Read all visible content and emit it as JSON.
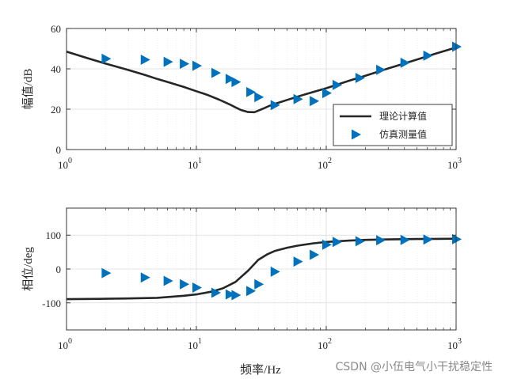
{
  "chart_data": [
    {
      "type": "line",
      "xscale": "log",
      "xlim": [
        1,
        1000
      ],
      "ylim": [
        0,
        60
      ],
      "yticks": [
        0,
        20,
        40,
        60
      ],
      "ylabel": "幅值/dB",
      "xlabel": "",
      "grid": true,
      "legend_position": "lower-right",
      "series": [
        {
          "name": "理论计算值",
          "kind": "line",
          "color": "#262626",
          "x": [
            1,
            1.5,
            2,
            3,
            4,
            5,
            6,
            8,
            10,
            12,
            15,
            18,
            20,
            22,
            25,
            28,
            30,
            33,
            36,
            40,
            45,
            50,
            60,
            70,
            80,
            100,
            150,
            200,
            300,
            500,
            700,
            1000
          ],
          "y": [
            48.5,
            45,
            42.6,
            39.4,
            37,
            35,
            33.5,
            31,
            28.9,
            27.2,
            24.7,
            22.4,
            20.9,
            19.6,
            18.6,
            18.5,
            19.3,
            20.4,
            21.5,
            22.6,
            23.6,
            24.6,
            26.2,
            27.5,
            28.6,
            30.4,
            34.1,
            36.6,
            40.2,
            44.6,
            47.6,
            50.6
          ]
        },
        {
          "name": "仿真测量值",
          "kind": "scatter",
          "marker": "triangle-right",
          "color": "#0072BD",
          "x": [
            2,
            4,
            6,
            8,
            10,
            14,
            18,
            20,
            26,
            30,
            40,
            60,
            80,
            100,
            120,
            180,
            260,
            400,
            600,
            1000
          ],
          "y": [
            45,
            44.5,
            43.5,
            42.5,
            41.5,
            38,
            35,
            33.5,
            28.5,
            26,
            22,
            25,
            24,
            28,
            32,
            35.5,
            39.5,
            43,
            46.5,
            51
          ]
        }
      ]
    },
    {
      "type": "line",
      "xscale": "log",
      "xlim": [
        1,
        1000
      ],
      "ylim": [
        -180,
        180
      ],
      "yticks": [
        -100,
        0,
        100
      ],
      "ylabel": "相位/deg",
      "xlabel": "频率/Hz",
      "grid": true,
      "series": [
        {
          "kind": "line",
          "color": "#262626",
          "x": [
            1,
            2,
            3,
            5,
            8,
            10,
            13,
            16,
            20,
            25,
            30,
            35,
            40,
            50,
            60,
            80,
            100,
            150,
            200,
            300,
            500,
            700,
            1000
          ],
          "y": [
            -89,
            -88,
            -87,
            -85,
            -79,
            -75,
            -67,
            -57,
            -38,
            -5,
            27,
            43,
            53,
            63,
            69,
            76,
            80,
            84,
            86,
            87.5,
            88.5,
            89,
            89.5
          ]
        },
        {
          "kind": "scatter",
          "marker": "triangle-right",
          "color": "#0072BD",
          "x": [
            2,
            4,
            6,
            8,
            10,
            14,
            18,
            20,
            26,
            30,
            40,
            60,
            80,
            100,
            120,
            180,
            260,
            400,
            600,
            1000
          ],
          "y": [
            -12,
            -25,
            -35,
            -45,
            -55,
            -70,
            -75,
            -77,
            -65,
            -45,
            -8,
            22,
            42,
            72,
            80,
            82,
            85,
            86,
            87,
            88
          ]
        }
      ]
    }
  ],
  "watermark": "CSDN @小伍电气小干扰稳定性"
}
